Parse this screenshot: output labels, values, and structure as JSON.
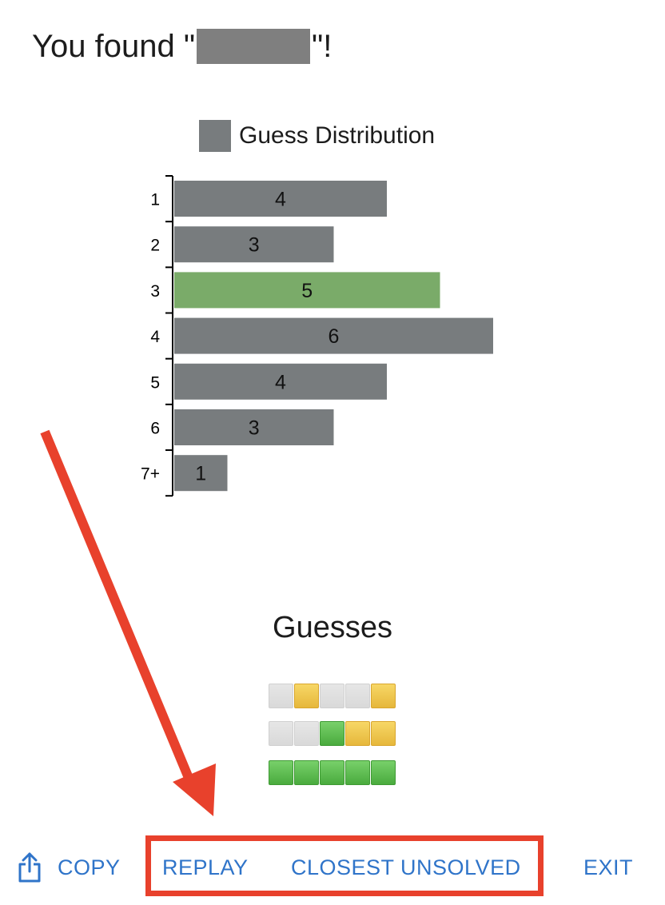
{
  "header": {
    "prefix": "You found \"",
    "suffix": "\"!"
  },
  "legend": {
    "label": "Guess Distribution",
    "color": "#787c7e"
  },
  "chart_data": {
    "type": "bar",
    "orientation": "horizontal",
    "categories": [
      "1",
      "2",
      "3",
      "4",
      "5",
      "6",
      "7+"
    ],
    "values": [
      4,
      3,
      5,
      6,
      4,
      3,
      1
    ],
    "highlight_index": 2,
    "colors": {
      "default": "#787c7e",
      "highlight": "#7aab69"
    },
    "series": [
      {
        "name": "Guess Distribution",
        "values": [
          4,
          3,
          5,
          6,
          4,
          3,
          1
        ]
      }
    ],
    "xlim": [
      0,
      6
    ],
    "grid": false,
    "legend_position": "top"
  },
  "guesses": {
    "title": "Guesses",
    "rows": [
      [
        "absent",
        "present",
        "absent",
        "absent",
        "present"
      ],
      [
        "absent",
        "absent",
        "correct",
        "present",
        "present"
      ],
      [
        "correct",
        "correct",
        "correct",
        "correct",
        "correct"
      ]
    ]
  },
  "footer": {
    "copy_label": "COPY",
    "replay_label": "REPLAY",
    "closest_label": "CLOSEST UNSOLVED",
    "exit_label": "EXIT",
    "link_color": "#2f74c9"
  },
  "annotation": {
    "color": "#e8412c"
  }
}
